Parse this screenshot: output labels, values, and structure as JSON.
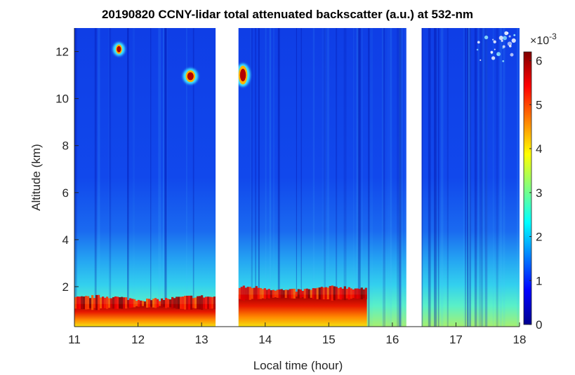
{
  "chart_data": {
    "type": "heatmap",
    "title": "20190820 CCNY-lidar total attenuated backscatter (a.u.) at 532-nm",
    "xlabel": "Local time (hour)",
    "ylabel": "Altitude (km)",
    "xlim": [
      11,
      18
    ],
    "ylim": [
      0.3,
      13
    ],
    "xticks": [
      11,
      12,
      13,
      14,
      15,
      16,
      17,
      18
    ],
    "yticks": [
      2,
      4,
      6,
      8,
      10,
      12
    ],
    "colorbar": {
      "colormap": "jet",
      "range": [
        0,
        6.2
      ],
      "ticks": [
        0,
        1,
        2,
        3,
        4,
        5,
        6
      ],
      "exponent_label": "×10",
      "exponent_power": "-3"
    },
    "data_gaps": [
      [
        13.22,
        13.58
      ],
      [
        16.22,
        16.46
      ]
    ],
    "features": [
      {
        "name": "boundary layer aerosol (high backscatter)",
        "x": [
          11.0,
          13.22
        ],
        "y": [
          0.3,
          1.5
        ],
        "value": 5.5
      },
      {
        "name": "boundary layer aerosol (high backscatter)",
        "x": [
          13.58,
          15.6
        ],
        "y": [
          0.3,
          1.9
        ],
        "value": 5.8
      },
      {
        "name": "elevated aerosol layer",
        "x": [
          11.0,
          18.0
        ],
        "y": [
          1.5,
          3.5
        ],
        "value": 2.0
      },
      {
        "name": "cloud",
        "x": [
          11.65,
          11.75
        ],
        "y": [
          11.9,
          12.3
        ],
        "value": 6.0
      },
      {
        "name": "cloud",
        "x": [
          12.75,
          12.9
        ],
        "y": [
          10.7,
          11.2
        ],
        "value": 6.0
      },
      {
        "name": "cloud",
        "x": [
          13.58,
          13.72
        ],
        "y": [
          10.6,
          11.4
        ],
        "value": 6.0
      },
      {
        "name": "thin cirrus",
        "x": [
          17.3,
          17.95
        ],
        "y": [
          11.4,
          12.8
        ],
        "value": 2.2
      }
    ]
  }
}
